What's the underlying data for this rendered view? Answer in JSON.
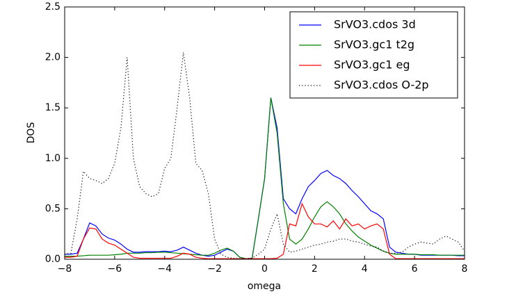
{
  "chart_data": {
    "type": "line",
    "xlabel": "omega",
    "ylabel": "DOS",
    "x": [
      -8,
      -7.75,
      -7.5,
      -7.25,
      -7,
      -6.75,
      -6.5,
      -6.25,
      -6,
      -5.75,
      -5.5,
      -5.25,
      -5,
      -4.75,
      -4.5,
      -4.25,
      -4,
      -3.75,
      -3.5,
      -3.25,
      -3,
      -2.75,
      -2.5,
      -2.25,
      -2,
      -1.75,
      -1.5,
      -1.25,
      -1,
      -0.75,
      -0.5,
      -0.25,
      0,
      0.25,
      0.5,
      0.75,
      1,
      1.25,
      1.5,
      1.75,
      2,
      2.25,
      2.5,
      2.75,
      3,
      3.25,
      3.5,
      3.75,
      4,
      4.25,
      4.5,
      4.75,
      5,
      5.25,
      5.5,
      5.75,
      6,
      6.25,
      6.5,
      6.75,
      7,
      7.25,
      7.5,
      7.75,
      8
    ],
    "series": [
      {
        "name": "SrVO3.cdos 3d",
        "color": "#0000ff",
        "linestyle": "solid",
        "values": [
          0.05,
          0.05,
          0.06,
          0.2,
          0.36,
          0.33,
          0.25,
          0.21,
          0.19,
          0.15,
          0.1,
          0.07,
          0.07,
          0.075,
          0.075,
          0.075,
          0.08,
          0.075,
          0.09,
          0.12,
          0.09,
          0.06,
          0.04,
          0.03,
          0.04,
          0.07,
          0.1,
          0.08,
          0.02,
          0.005,
          0.01,
          0.4,
          0.8,
          1.6,
          1.3,
          0.6,
          0.5,
          0.45,
          0.6,
          0.72,
          0.78,
          0.85,
          0.88,
          0.83,
          0.8,
          0.75,
          0.68,
          0.62,
          0.55,
          0.48,
          0.45,
          0.4,
          0.12,
          0.07,
          0.06,
          0.05,
          0.05,
          0.04,
          0.04,
          0.04,
          0.04,
          0.04,
          0.04,
          0.035,
          0.035
        ]
      },
      {
        "name": "SrVO3.gc1 t2g",
        "color": "#008000",
        "linestyle": "solid",
        "values": [
          0.03,
          0.03,
          0.03,
          0.035,
          0.04,
          0.04,
          0.04,
          0.04,
          0.045,
          0.05,
          0.06,
          0.06,
          0.06,
          0.065,
          0.065,
          0.07,
          0.07,
          0.065,
          0.06,
          0.055,
          0.05,
          0.045,
          0.04,
          0.04,
          0.06,
          0.09,
          0.11,
          0.08,
          0.02,
          0.005,
          0.01,
          0.4,
          0.8,
          1.6,
          1.25,
          0.55,
          0.2,
          0.15,
          0.2,
          0.3,
          0.42,
          0.52,
          0.57,
          0.52,
          0.45,
          0.35,
          0.28,
          0.22,
          0.18,
          0.14,
          0.11,
          0.08,
          0.06,
          0.05,
          0.05,
          0.05,
          0.05,
          0.045,
          0.045,
          0.045,
          0.04,
          0.04,
          0.04,
          0.04,
          0.04
        ]
      },
      {
        "name": "SrVO3.gc1 eg",
        "color": "#ff0000",
        "linestyle": "solid",
        "values": [
          0.02,
          0.02,
          0.03,
          0.2,
          0.31,
          0.3,
          0.2,
          0.16,
          0.14,
          0.1,
          0.06,
          0.02,
          0.01,
          0.01,
          0.01,
          0.01,
          0.01,
          0.01,
          0.03,
          0.06,
          0.05,
          0.02,
          0.01,
          0.005,
          0.005,
          0.005,
          0.005,
          0.005,
          0.005,
          0.005,
          0.005,
          0.005,
          0.005,
          0.005,
          0.01,
          0.05,
          0.35,
          0.33,
          0.55,
          0.42,
          0.35,
          0.35,
          0.32,
          0.38,
          0.3,
          0.4,
          0.33,
          0.35,
          0.3,
          0.33,
          0.35,
          0.3,
          0.05,
          0.005,
          0.005,
          0.005,
          0.005,
          0.005,
          0.005,
          0.005,
          0.005,
          0.005,
          0.005,
          0.005,
          0.005
        ]
      },
      {
        "name": "SrVO3.cdos O-2p",
        "color": "#000000",
        "linestyle": "dotted",
        "values": [
          0.05,
          0.06,
          0.4,
          0.87,
          0.8,
          0.78,
          0.75,
          0.8,
          0.95,
          1.3,
          2.0,
          1.0,
          0.72,
          0.65,
          0.62,
          0.65,
          0.9,
          1.0,
          1.5,
          2.05,
          1.6,
          0.95,
          0.88,
          0.65,
          0.2,
          0.05,
          0.02,
          0.01,
          0.005,
          0.005,
          0.01,
          0.05,
          0.1,
          0.3,
          0.45,
          0.15,
          0.07,
          0.08,
          0.1,
          0.12,
          0.14,
          0.15,
          0.17,
          0.18,
          0.2,
          0.2,
          0.18,
          0.17,
          0.15,
          0.13,
          0.12,
          0.08,
          0.06,
          0.06,
          0.07,
          0.12,
          0.15,
          0.17,
          0.16,
          0.15,
          0.2,
          0.23,
          0.2,
          0.17,
          0.08
        ]
      }
    ],
    "xlim": [
      -8,
      8
    ],
    "xticks": [
      {
        "value": -8,
        "label": "−8"
      },
      {
        "value": -6,
        "label": "−6"
      },
      {
        "value": -4,
        "label": "−4"
      },
      {
        "value": -2,
        "label": "−2"
      },
      0,
      2,
      4,
      6,
      8
    ],
    "ylim": [
      0,
      2.5
    ],
    "yticks": [
      {
        "value": 0,
        "label": "0.0"
      },
      {
        "value": 0.5,
        "label": "0.5"
      },
      {
        "value": 1,
        "label": "1.0"
      },
      {
        "value": 1.5,
        "label": "1.5"
      },
      {
        "value": 2,
        "label": "2.0"
      },
      {
        "value": 2.5,
        "label": "2.5"
      }
    ],
    "legend": "upper right"
  }
}
